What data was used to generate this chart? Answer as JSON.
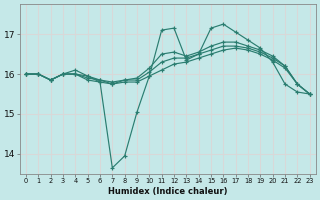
{
  "title": "",
  "xlabel": "Humidex (Indice chaleur)",
  "background_color": "#c5e8e8",
  "grid_color": "#d8d8d8",
  "line_color": "#2a7d70",
  "x_ticks": [
    0,
    1,
    2,
    3,
    4,
    5,
    6,
    7,
    8,
    9,
    10,
    11,
    12,
    13,
    14,
    15,
    16,
    17,
    18,
    19,
    20,
    21,
    22,
    23
  ],
  "y_ticks": [
    14,
    15,
    16,
    17
  ],
  "ylim": [
    13.5,
    17.75
  ],
  "xlim": [
    -0.5,
    23.5
  ],
  "series": [
    [
      16.0,
      16.0,
      15.85,
      16.0,
      16.1,
      15.95,
      15.8,
      13.65,
      13.95,
      15.05,
      15.95,
      17.1,
      17.15,
      16.35,
      16.5,
      17.15,
      17.25,
      17.05,
      16.85,
      16.65,
      16.3,
      15.75,
      15.55,
      15.5
    ],
    [
      16.0,
      16.0,
      15.85,
      16.0,
      16.0,
      15.95,
      15.85,
      15.75,
      15.85,
      15.9,
      16.15,
      16.5,
      16.55,
      16.45,
      16.55,
      16.7,
      16.8,
      16.8,
      16.7,
      16.6,
      16.45,
      16.2,
      15.75,
      15.5
    ],
    [
      16.0,
      16.0,
      15.85,
      16.0,
      16.0,
      15.9,
      15.85,
      15.8,
      15.85,
      15.85,
      16.05,
      16.3,
      16.4,
      16.4,
      16.5,
      16.6,
      16.7,
      16.7,
      16.65,
      16.55,
      16.4,
      16.2,
      15.75,
      15.5
    ],
    [
      16.0,
      16.0,
      15.85,
      16.0,
      16.0,
      15.85,
      15.8,
      15.75,
      15.8,
      15.8,
      15.95,
      16.1,
      16.25,
      16.3,
      16.4,
      16.5,
      16.6,
      16.65,
      16.6,
      16.5,
      16.35,
      16.15,
      15.75,
      15.5
    ]
  ]
}
